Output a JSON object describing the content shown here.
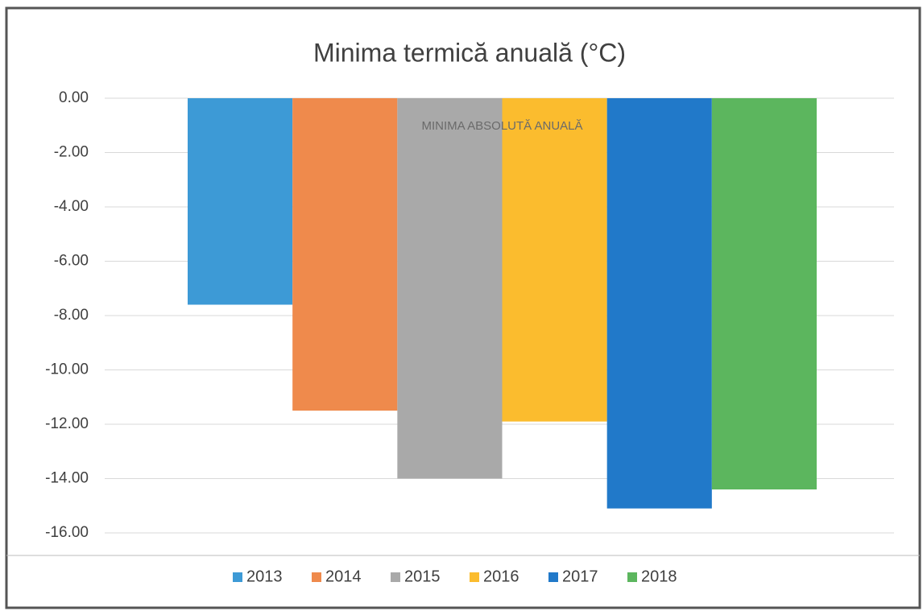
{
  "chart_data": {
    "type": "bar",
    "title": "Minima termică anuală (°C)",
    "categories": [
      "MINIMA ABSOLUTĂ ANUALĂ"
    ],
    "series": [
      {
        "name": "2013",
        "color": "#3d9ad6",
        "values": [
          -7.6
        ]
      },
      {
        "name": "2014",
        "color": "#ef8a4c",
        "values": [
          -11.5
        ]
      },
      {
        "name": "2015",
        "color": "#a9a9a9",
        "values": [
          -14.0
        ]
      },
      {
        "name": "2016",
        "color": "#fbbc2e",
        "values": [
          -11.9
        ]
      },
      {
        "name": "2017",
        "color": "#2179c9",
        "values": [
          -15.1
        ]
      },
      {
        "name": "2018",
        "color": "#5cb65e",
        "values": [
          -14.4
        ]
      }
    ],
    "ylim": [
      -16,
      0
    ],
    "yticks": [
      {
        "value": 0,
        "label": "0.00"
      },
      {
        "value": -2,
        "label": "-2.00"
      },
      {
        "value": -4,
        "label": "-4.00"
      },
      {
        "value": -6,
        "label": "-6.00"
      },
      {
        "value": -8,
        "label": "-8.00"
      },
      {
        "value": -10,
        "label": "-10.00"
      },
      {
        "value": -12,
        "label": "-12.00"
      },
      {
        "value": -14,
        "label": "-14.00"
      },
      {
        "value": -16,
        "label": "-16.00"
      }
    ],
    "grid": true,
    "legend": "bottom"
  }
}
